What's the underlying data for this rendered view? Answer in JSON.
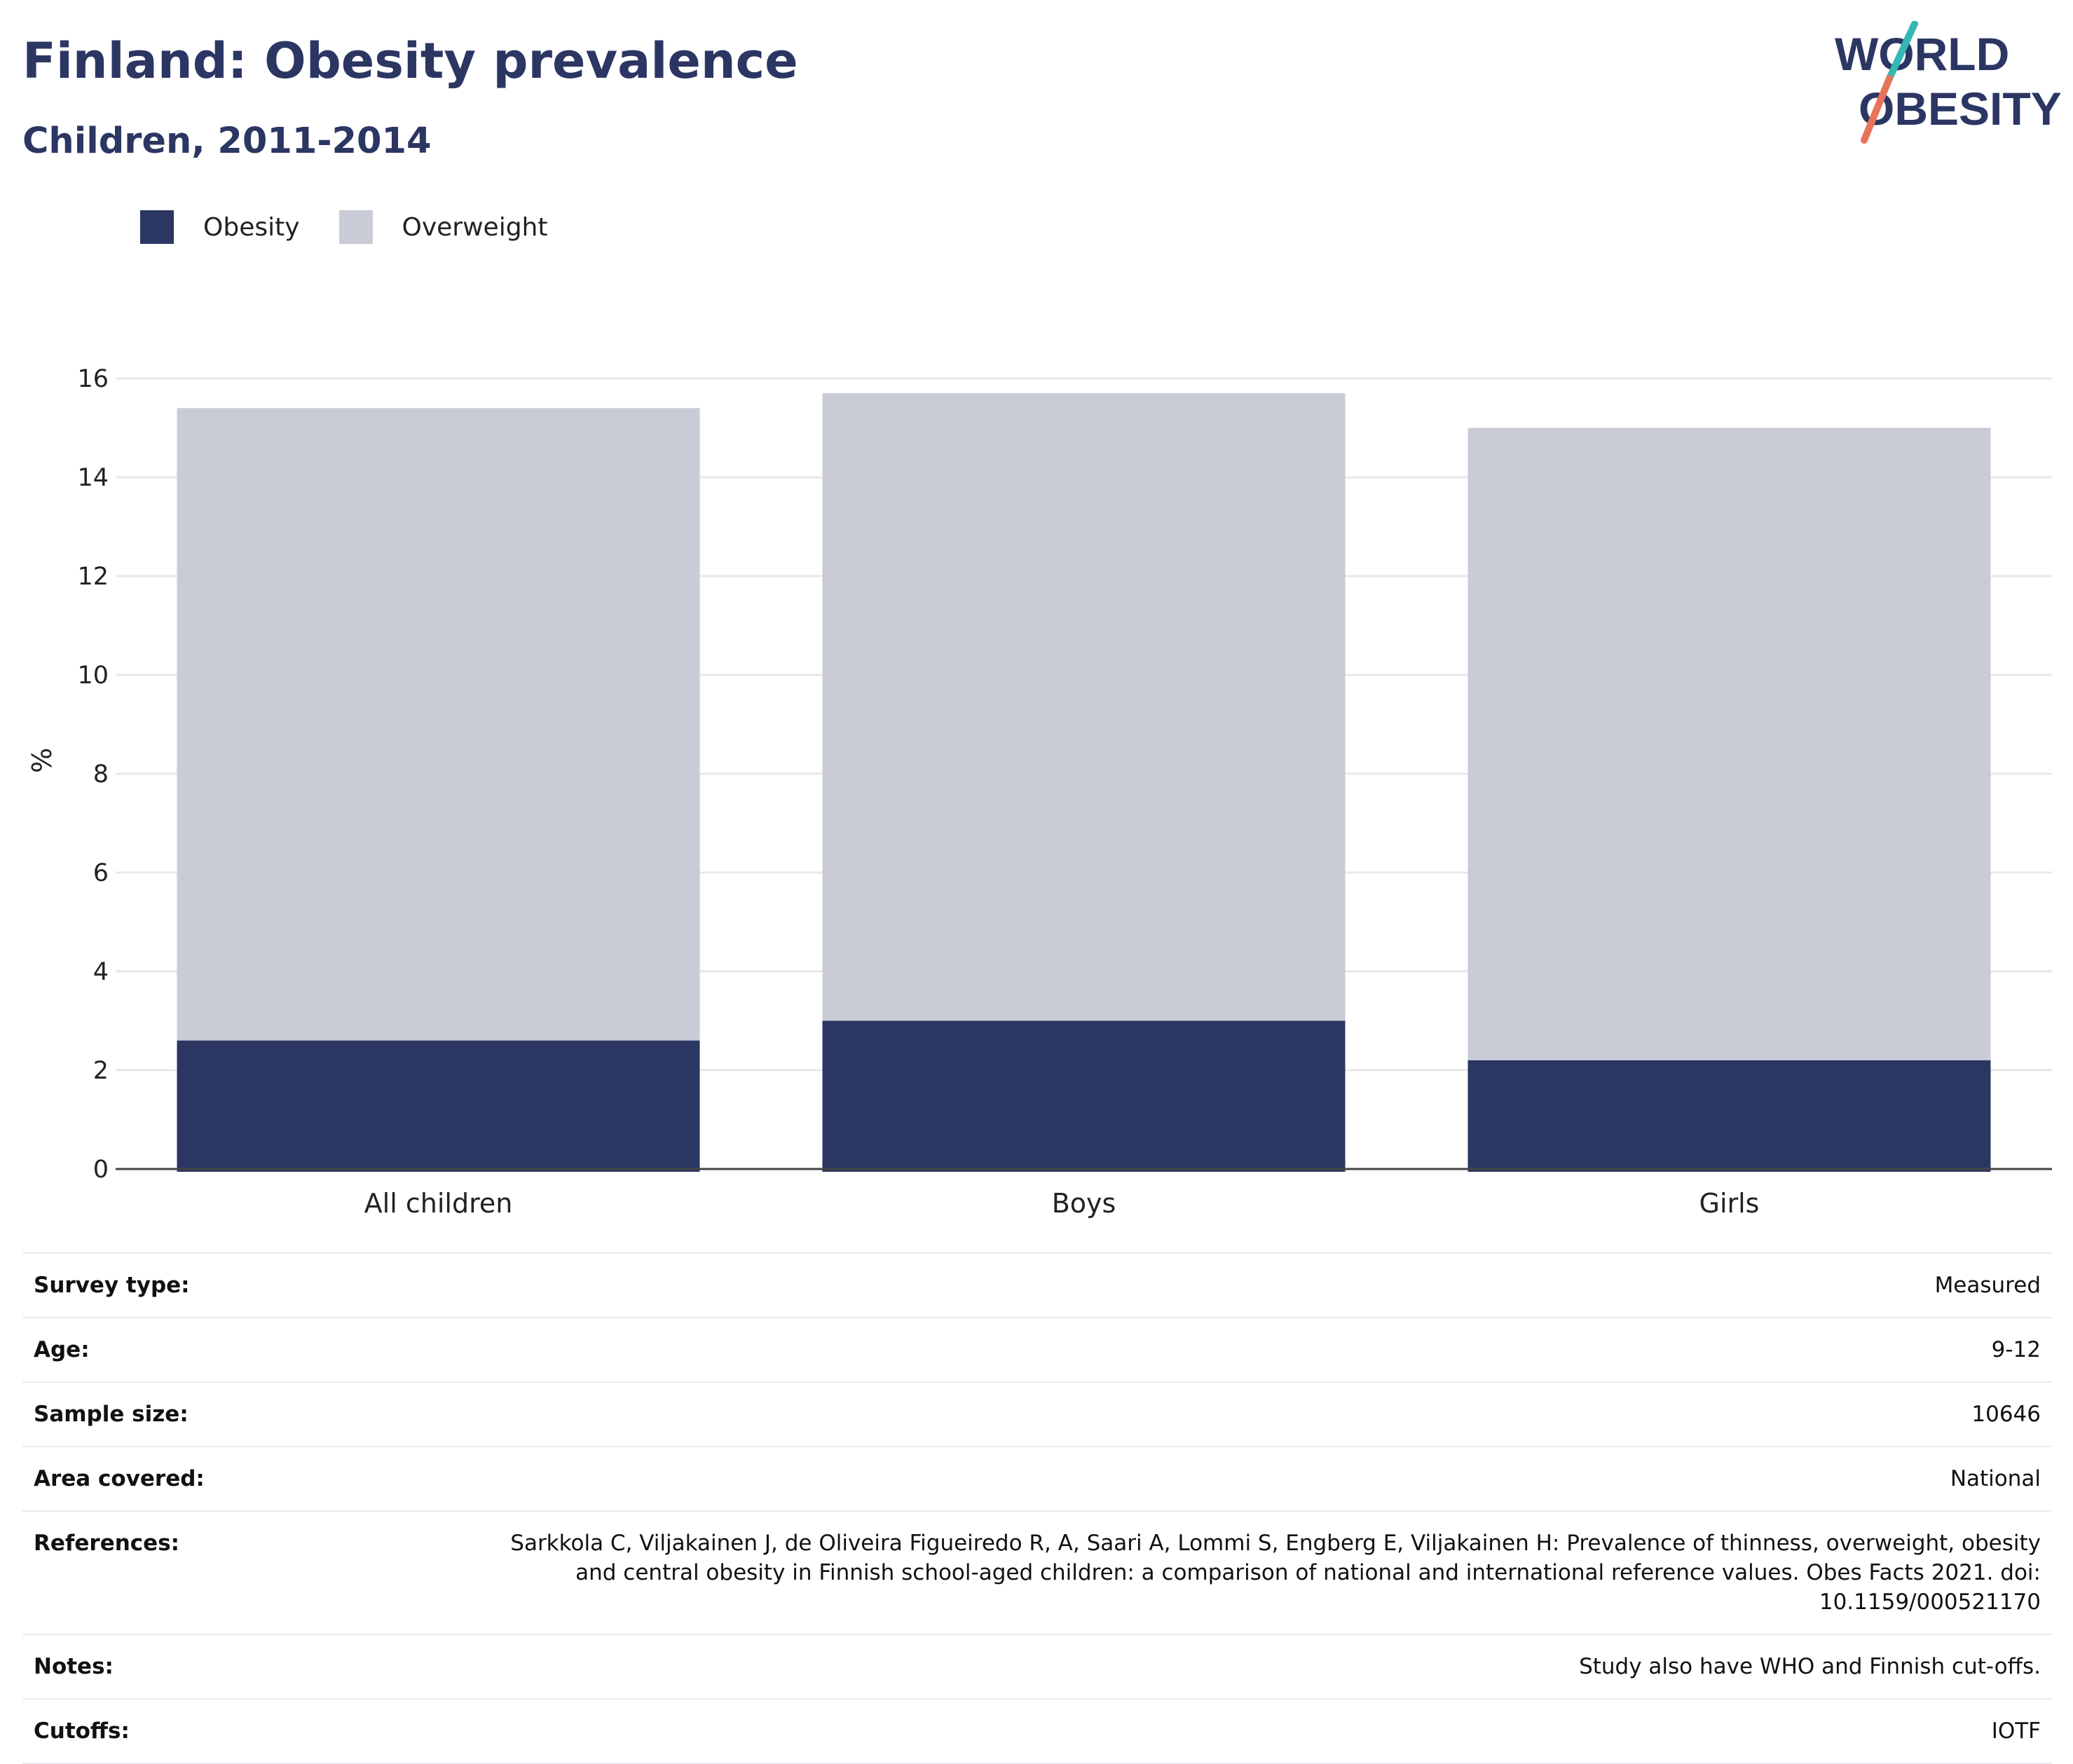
{
  "title": "Finland: Obesity prevalence",
  "subtitle": "Children, 2011-2014",
  "logo": {
    "line1": "WORLD",
    "line2": "OBESITY"
  },
  "colors": {
    "obesity": "#2b3663",
    "overweight": "#c9cbd7",
    "text": "#2b3663",
    "logo_teal": "#36b7b4",
    "logo_coral": "#e8735a"
  },
  "chart_data": {
    "type": "bar",
    "stacked": false,
    "overlaid": true,
    "categories": [
      "All children",
      "Boys",
      "Girls"
    ],
    "series": [
      {
        "name": "Obesity",
        "values": [
          2.6,
          3.0,
          2.2
        ]
      },
      {
        "name": "Overweight",
        "values": [
          15.4,
          15.7,
          15.0
        ]
      }
    ],
    "ylabel": "%",
    "xlabel": "",
    "ylim": [
      0,
      16
    ],
    "yticks": [
      0,
      2,
      4,
      6,
      8,
      10,
      12,
      14,
      16
    ],
    "grid": true,
    "legend_position": "top-left"
  },
  "info": [
    {
      "label": "Survey type:",
      "value": "Measured"
    },
    {
      "label": "Age:",
      "value": "9-12"
    },
    {
      "label": "Sample size:",
      "value": "10646"
    },
    {
      "label": "Area covered:",
      "value": "National"
    },
    {
      "label": "References:",
      "value": "Sarkkola C, Viljakainen J, de Oliveira Figueiredo R, A, Saari A, Lommi S, Engberg E, Viljakainen H: Prevalence of thinness, overweight, obesity and central obesity in Finnish school-aged children: a comparison of national and international reference values. Obes Facts 2021. doi: 10.1159/000521170"
    },
    {
      "label": "Notes:",
      "value": "Study also have WHO and Finnish cut-offs."
    },
    {
      "label": "Cutoffs:",
      "value": "IOTF"
    }
  ]
}
